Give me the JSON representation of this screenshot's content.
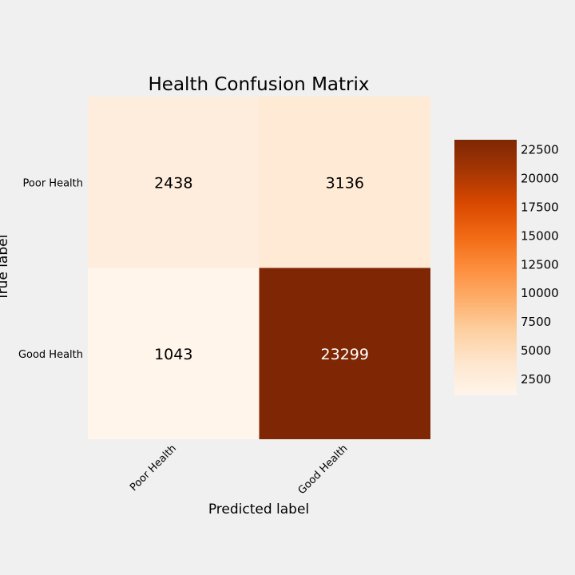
{
  "chart_data": {
    "type": "heatmap",
    "title": "Health Confusion Matrix",
    "xlabel": "Predicted label",
    "ylabel": "True label",
    "x_categories": [
      "Poor Health",
      "Good Health"
    ],
    "y_categories": [
      "Poor Health",
      "Good Health"
    ],
    "values": [
      [
        2438,
        3136
      ],
      [
        1043,
        23299
      ]
    ],
    "colormap": "Oranges",
    "colorbar": {
      "range": [
        1043,
        23299
      ],
      "ticks": [
        2500,
        5000,
        7500,
        10000,
        12500,
        15000,
        17500,
        20000,
        22500
      ]
    },
    "grid": false
  }
}
